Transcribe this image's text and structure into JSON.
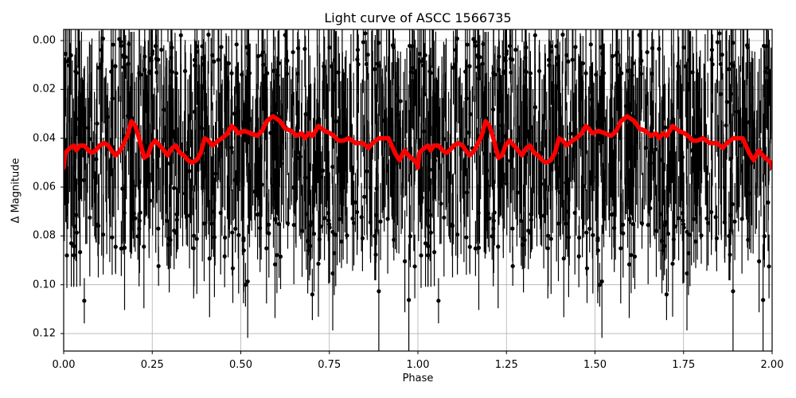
{
  "chart_data": {
    "type": "scatter",
    "title": "Light curve of ASCC 1566735",
    "xlabel": "Phase",
    "ylabel": "Δ Magnitude",
    "xlim": [
      0.0,
      2.0
    ],
    "ylim": [
      0.128,
      -0.004
    ],
    "y_inverted": true,
    "grid": true,
    "xticks": [
      "0.00",
      "0.25",
      "0.50",
      "0.75",
      "1.00",
      "1.25",
      "1.50",
      "1.75",
      "2.00"
    ],
    "yticks": [
      "0.00",
      "0.02",
      "0.04",
      "0.06",
      "0.08",
      "0.10",
      "0.12"
    ],
    "series": [
      {
        "name": "observations",
        "style": "black points with vertical error bars",
        "color": "#000000",
        "description": "dense phase-folded measurements, mostly between 0.00 and 0.10 mag, repeated over two cycles",
        "approx_range": [
          0.0,
          0.128
        ]
      },
      {
        "name": "binned/smoothed curve",
        "style": "thick line",
        "color": "#ff0000",
        "x": [
          0.0,
          0.004,
          0.018,
          0.029,
          0.036,
          0.045,
          0.058,
          0.07,
          0.079,
          0.09,
          0.101,
          0.115,
          0.126,
          0.135,
          0.146,
          0.16,
          0.18,
          0.191,
          0.202,
          0.213,
          0.22,
          0.227,
          0.238,
          0.247,
          0.258,
          0.272,
          0.283,
          0.294,
          0.306,
          0.317,
          0.328,
          0.339,
          0.351,
          0.362,
          0.375,
          0.387,
          0.398,
          0.409,
          0.42,
          0.436,
          0.447,
          0.463,
          0.474,
          0.483,
          0.492,
          0.51,
          0.528,
          0.546,
          0.56,
          0.573,
          0.591,
          0.611,
          0.625,
          0.643,
          0.658,
          0.672,
          0.681,
          0.692,
          0.703,
          0.719,
          0.737,
          0.753,
          0.762,
          0.776,
          0.789,
          0.804,
          0.825,
          0.845,
          0.861,
          0.872,
          0.89,
          0.917,
          0.935,
          0.948,
          0.962,
          0.973,
          0.996,
          1.0
        ],
        "y": [
          0.052,
          0.046,
          0.044,
          0.043,
          0.045,
          0.043,
          0.043,
          0.045,
          0.046,
          0.045,
          0.043,
          0.042,
          0.043,
          0.045,
          0.047,
          0.045,
          0.039,
          0.033,
          0.035,
          0.04,
          0.044,
          0.048,
          0.047,
          0.043,
          0.041,
          0.043,
          0.045,
          0.047,
          0.044,
          0.043,
          0.046,
          0.047,
          0.049,
          0.05,
          0.049,
          0.046,
          0.04,
          0.041,
          0.043,
          0.041,
          0.04,
          0.038,
          0.035,
          0.036,
          0.038,
          0.037,
          0.038,
          0.039,
          0.037,
          0.033,
          0.031,
          0.033,
          0.036,
          0.037,
          0.039,
          0.038,
          0.04,
          0.038,
          0.039,
          0.035,
          0.037,
          0.038,
          0.039,
          0.041,
          0.041,
          0.04,
          0.042,
          0.042,
          0.044,
          0.042,
          0.04,
          0.04,
          0.046,
          0.049,
          0.045,
          0.047,
          0.05,
          0.052
        ],
        "periodic_repeat": "pattern repeats identically for phase 1.0-2.0"
      }
    ]
  },
  "labels": {
    "title": "Light curve of ASCC 1566735",
    "xlabel": "Phase",
    "ylabel": "Δ Magnitude",
    "xticks": [
      "0.00",
      "0.25",
      "0.50",
      "0.75",
      "1.00",
      "1.25",
      "1.50",
      "1.75",
      "2.00"
    ],
    "yticks": [
      "0.00",
      "0.02",
      "0.04",
      "0.06",
      "0.08",
      "0.10",
      "0.12"
    ]
  },
  "colors": {
    "curve": "#ff0000",
    "points": "#000000",
    "grid": "#b0b0b0"
  }
}
